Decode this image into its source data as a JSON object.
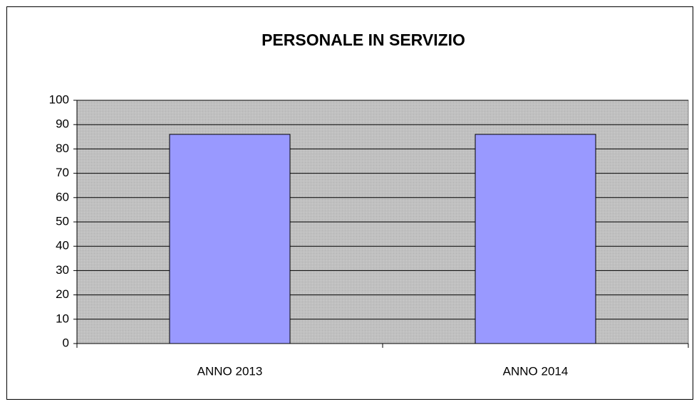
{
  "chart_data": {
    "type": "bar",
    "title": "PERSONALE IN SERVIZIO",
    "categories": [
      "ANNO 2013",
      "ANNO 2014"
    ],
    "values": [
      86,
      86
    ],
    "color": "#9999ff",
    "ylim": [
      0,
      100
    ],
    "yticks": [
      0,
      10,
      20,
      30,
      40,
      50,
      60,
      70,
      80,
      90,
      100
    ],
    "grid": true
  }
}
